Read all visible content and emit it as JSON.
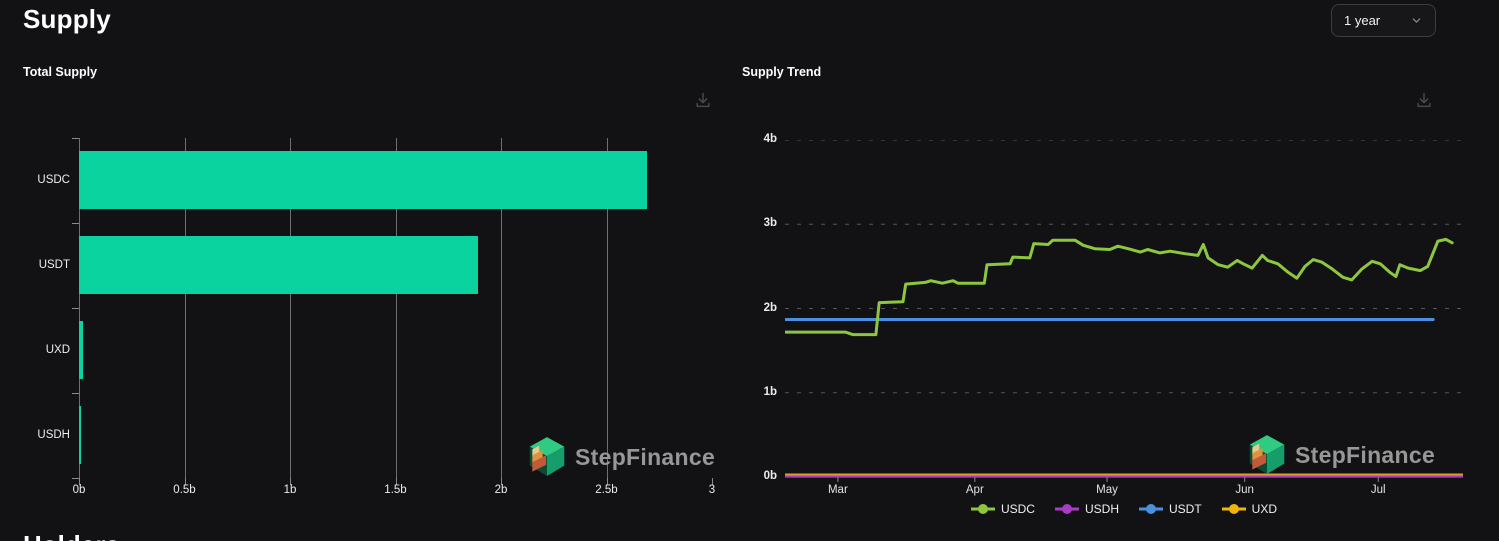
{
  "header": {
    "title": "Supply"
  },
  "timeframe": {
    "value": "1 year"
  },
  "next_section": {
    "title": "Holders"
  },
  "watermark": {
    "text": "StepFinance"
  },
  "charts": {
    "total_supply": {
      "title": "Total Supply"
    },
    "supply_trend": {
      "title": "Supply Trend"
    }
  },
  "chart_data": [
    {
      "type": "bar",
      "title": "Total Supply",
      "orientation": "horizontal",
      "categories": [
        "USDC",
        "USDT",
        "UXD",
        "USDH"
      ],
      "values": [
        2.69,
        1.89,
        0.02,
        0.008
      ],
      "unit": "billions",
      "xlim": [
        0,
        3
      ],
      "x_tick_values": [
        0,
        0.5,
        1,
        1.5,
        2,
        2.5,
        3
      ],
      "x_tick_labels": [
        "0b",
        "0.5b",
        "1b",
        "1.5b",
        "2b",
        "2.5b",
        "3"
      ],
      "bar_color": "#0ad3a0",
      "grid": "vertical"
    },
    {
      "type": "line",
      "title": "Supply Trend",
      "ylim": [
        0,
        4
      ],
      "y_tick_values": [
        0,
        1,
        2,
        3,
        4
      ],
      "y_tick_labels": [
        "0b",
        "1b",
        "2b",
        "3b",
        "4b"
      ],
      "x_tick_labels": [
        "Mar",
        "Apr",
        "May",
        "Jun",
        "Jul"
      ],
      "x_tick_positions": [
        0.078,
        0.28,
        0.475,
        0.678,
        0.875
      ],
      "grid": "dashed-horizontal",
      "legend_position": "bottom",
      "legend": [
        {
          "name": "USDC",
          "color": "#8dc63f"
        },
        {
          "name": "USDH",
          "color": "#a93bc4"
        },
        {
          "name": "USDT",
          "color": "#4a90e2"
        },
        {
          "name": "UXD",
          "color": "#f0b50d"
        }
      ],
      "series": [
        {
          "name": "USDH",
          "color": "#a93bc4",
          "width": 2,
          "points": [
            [
              0,
              0.01
            ],
            [
              1,
              0.01
            ]
          ]
        },
        {
          "name": "UXD",
          "color": "#dda02a",
          "width": 2,
          "points": [
            [
              0,
              0.03
            ],
            [
              1,
              0.03
            ]
          ]
        },
        {
          "name": "USDT",
          "color": "#4a90e2",
          "width": 3,
          "points": [
            [
              0,
              1.87
            ],
            [
              0.956,
              1.87
            ]
          ]
        },
        {
          "name": "USDC",
          "color": "#8dc63f",
          "width": 3,
          "points": [
            [
              0.0,
              1.72
            ],
            [
              0.089,
              1.72
            ],
            [
              0.1,
              1.69
            ],
            [
              0.134,
              1.69
            ],
            [
              0.139,
              2.07
            ],
            [
              0.174,
              2.08
            ],
            [
              0.178,
              2.29
            ],
            [
              0.207,
              2.31
            ],
            [
              0.215,
              2.33
            ],
            [
              0.232,
              2.3
            ],
            [
              0.248,
              2.33
            ],
            [
              0.255,
              2.3
            ],
            [
              0.294,
              2.3
            ],
            [
              0.298,
              2.52
            ],
            [
              0.332,
              2.53
            ],
            [
              0.336,
              2.61
            ],
            [
              0.361,
              2.6
            ],
            [
              0.367,
              2.77
            ],
            [
              0.388,
              2.76
            ],
            [
              0.395,
              2.81
            ],
            [
              0.428,
              2.81
            ],
            [
              0.44,
              2.75
            ],
            [
              0.457,
              2.71
            ],
            [
              0.479,
              2.7
            ],
            [
              0.491,
              2.74
            ],
            [
              0.506,
              2.71
            ],
            [
              0.524,
              2.67
            ],
            [
              0.535,
              2.7
            ],
            [
              0.553,
              2.66
            ],
            [
              0.568,
              2.68
            ],
            [
              0.59,
              2.65
            ],
            [
              0.609,
              2.63
            ],
            [
              0.617,
              2.76
            ],
            [
              0.624,
              2.6
            ],
            [
              0.639,
              2.52
            ],
            [
              0.653,
              2.49
            ],
            [
              0.667,
              2.57
            ],
            [
              0.676,
              2.53
            ],
            [
              0.689,
              2.48
            ],
            [
              0.704,
              2.63
            ],
            [
              0.712,
              2.57
            ],
            [
              0.727,
              2.53
            ],
            [
              0.742,
              2.43
            ],
            [
              0.755,
              2.36
            ],
            [
              0.767,
              2.5
            ],
            [
              0.779,
              2.58
            ],
            [
              0.792,
              2.55
            ],
            [
              0.807,
              2.47
            ],
            [
              0.823,
              2.37
            ],
            [
              0.836,
              2.34
            ],
            [
              0.851,
              2.47
            ],
            [
              0.866,
              2.56
            ],
            [
              0.878,
              2.53
            ],
            [
              0.892,
              2.43
            ],
            [
              0.901,
              2.38
            ],
            [
              0.907,
              2.52
            ],
            [
              0.919,
              2.48
            ],
            [
              0.937,
              2.45
            ],
            [
              0.948,
              2.5
            ],
            [
              0.963,
              2.8
            ],
            [
              0.975,
              2.82
            ],
            [
              0.984,
              2.78
            ]
          ]
        }
      ]
    }
  ]
}
